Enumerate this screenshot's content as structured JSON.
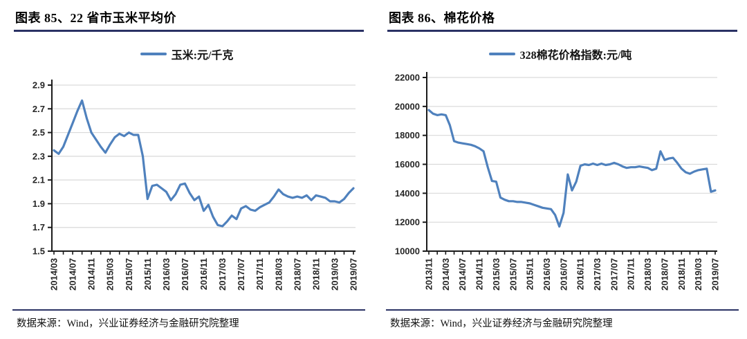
{
  "colors": {
    "accent_navy": "#2A3164",
    "line_blue": "#4F81BD",
    "gridline": "#D9D9D9",
    "axis": "#1A1A1A",
    "tick_text": "#262626"
  },
  "panels": [
    {
      "title": "图表 85、22 省市玉米平均价",
      "legend": "玉米:元/千克",
      "source": "数据来源：Wind，兴业证券经济与金融研究院整理"
    },
    {
      "title": "图表 86、棉花价格",
      "legend": "328棉花价格指数:元/吨",
      "source": "数据来源：Wind，兴业证券经济与金融研究院整理"
    }
  ],
  "chart_data": [
    {
      "type": "line",
      "title": "22 省市玉米平均价",
      "legend_position": "top",
      "grid": "horizontal",
      "ylabel": "元/千克",
      "ylim": [
        1.5,
        2.9
      ],
      "y_tick_step": 0.2,
      "y_tick_labels": [
        "2.9",
        "2.7",
        "2.5",
        "2.3",
        "2.1",
        "1.9",
        "1.7",
        "1.5"
      ],
      "x_tick_labels": [
        "2014/03",
        "2014/07",
        "2014/11",
        "2015/03",
        "2015/07",
        "2015/11",
        "2016/03",
        "2016/07",
        "2016/11",
        "2017/03",
        "2017/07",
        "2017/11",
        "2018/03",
        "2018/07",
        "2018/11",
        "2019/03",
        "2019/07"
      ],
      "x": [
        "2014/03",
        "2014/04",
        "2014/05",
        "2014/06",
        "2014/07",
        "2014/08",
        "2014/09",
        "2014/10",
        "2014/11",
        "2014/12",
        "2015/01",
        "2015/02",
        "2015/03",
        "2015/04",
        "2015/05",
        "2015/06",
        "2015/07",
        "2015/08",
        "2015/09",
        "2015/10",
        "2015/11",
        "2015/12",
        "2016/01",
        "2016/02",
        "2016/03",
        "2016/04",
        "2016/05",
        "2016/06",
        "2016/07",
        "2016/08",
        "2016/09",
        "2016/10",
        "2016/11",
        "2016/12",
        "2017/01",
        "2017/02",
        "2017/03",
        "2017/04",
        "2017/05",
        "2017/06",
        "2017/07",
        "2017/08",
        "2017/09",
        "2017/10",
        "2017/11",
        "2017/12",
        "2018/01",
        "2018/02",
        "2018/03",
        "2018/04",
        "2018/05",
        "2018/06",
        "2018/07",
        "2018/08",
        "2018/09",
        "2018/10",
        "2018/11",
        "2018/12",
        "2019/01",
        "2019/02",
        "2019/03",
        "2019/04",
        "2019/05",
        "2019/06",
        "2019/07"
      ],
      "series": [
        {
          "name": "玉米:元/千克",
          "values": [
            2.35,
            2.32,
            2.38,
            2.48,
            2.58,
            2.68,
            2.77,
            2.62,
            2.5,
            2.44,
            2.38,
            2.33,
            2.4,
            2.46,
            2.49,
            2.47,
            2.5,
            2.48,
            2.48,
            2.3,
            1.94,
            2.05,
            2.06,
            2.03,
            2.0,
            1.93,
            1.98,
            2.06,
            2.07,
            1.99,
            1.93,
            1.96,
            1.84,
            1.89,
            1.79,
            1.72,
            1.71,
            1.75,
            1.8,
            1.77,
            1.86,
            1.88,
            1.85,
            1.84,
            1.87,
            1.89,
            1.91,
            1.96,
            2.02,
            1.98,
            1.96,
            1.95,
            1.96,
            1.95,
            1.97,
            1.93,
            1.97,
            1.96,
            1.95,
            1.92,
            1.92,
            1.91,
            1.94,
            1.99,
            2.03
          ]
        }
      ]
    },
    {
      "type": "line",
      "title": "棉花价格",
      "legend_position": "top",
      "grid": "horizontal",
      "ylabel": "元/吨",
      "ylim": [
        10000,
        22000
      ],
      "y_tick_step": 2000,
      "y_tick_labels": [
        "22000",
        "20000",
        "18000",
        "16000",
        "14000",
        "12000",
        "10000"
      ],
      "x_tick_labels": [
        "2013/11",
        "2014/03",
        "2014/07",
        "2014/11",
        "2015/03",
        "2015/07",
        "2015/11",
        "2016/03",
        "2016/07",
        "2016/11",
        "2017/03",
        "2017/07",
        "2017/11",
        "2018/03",
        "2018/07",
        "2018/11",
        "2019/03",
        "2019/07"
      ],
      "x": [
        "2013/11",
        "2013/12",
        "2014/01",
        "2014/02",
        "2014/03",
        "2014/04",
        "2014/05",
        "2014/06",
        "2014/07",
        "2014/08",
        "2014/09",
        "2014/10",
        "2014/11",
        "2014/12",
        "2015/01",
        "2015/02",
        "2015/03",
        "2015/04",
        "2015/05",
        "2015/06",
        "2015/07",
        "2015/08",
        "2015/09",
        "2015/10",
        "2015/11",
        "2015/12",
        "2016/01",
        "2016/02",
        "2016/03",
        "2016/04",
        "2016/05",
        "2016/06",
        "2016/07",
        "2016/08",
        "2016/09",
        "2016/10",
        "2016/11",
        "2016/12",
        "2017/01",
        "2017/02",
        "2017/03",
        "2017/04",
        "2017/05",
        "2017/06",
        "2017/07",
        "2017/08",
        "2017/09",
        "2017/10",
        "2017/11",
        "2017/12",
        "2018/01",
        "2018/02",
        "2018/03",
        "2018/04",
        "2018/05",
        "2018/06",
        "2018/07",
        "2018/08",
        "2018/09",
        "2018/10",
        "2018/11",
        "2018/12",
        "2019/01",
        "2019/02",
        "2019/03",
        "2019/04",
        "2019/05",
        "2019/06",
        "2019/07"
      ],
      "series": [
        {
          "name": "328棉花价格指数:元/吨",
          "values": [
            19750,
            19500,
            19400,
            19450,
            19400,
            18700,
            17600,
            17500,
            17450,
            17400,
            17350,
            17250,
            17100,
            16900,
            15800,
            14850,
            14800,
            13700,
            13550,
            13450,
            13450,
            13400,
            13400,
            13350,
            13300,
            13200,
            13100,
            13000,
            12950,
            12900,
            12500,
            11700,
            12650,
            15300,
            14200,
            14800,
            15900,
            16000,
            15950,
            16050,
            15950,
            16050,
            15950,
            16000,
            16100,
            16000,
            15850,
            15750,
            15800,
            15800,
            15850,
            15800,
            15750,
            15600,
            15700,
            16900,
            16300,
            16400,
            16450,
            16100,
            15700,
            15450,
            15350,
            15500,
            15600,
            15650,
            15700,
            14100,
            14200
          ]
        }
      ]
    }
  ]
}
